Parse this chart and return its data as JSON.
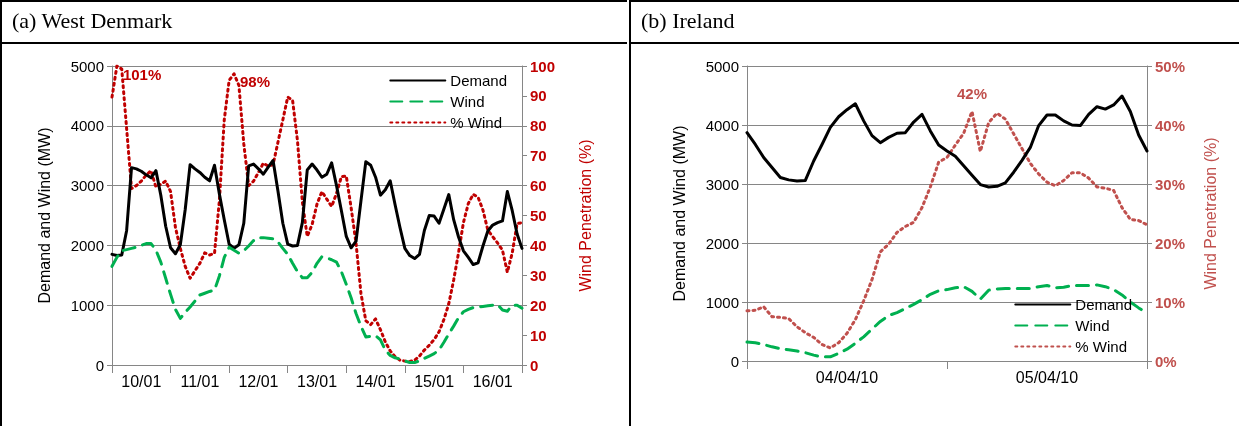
{
  "chart_data": [
    {
      "type": "line",
      "title": "(a) West Denmark",
      "ylabel": "Demand and Wind (MW)",
      "y2label": "Wind Penetration (%)",
      "categories": [
        null,
        null,
        null,
        null,
        null,
        null,
        "10/01",
        null,
        null,
        null,
        null,
        null,
        null,
        null,
        null,
        null,
        null,
        null,
        "11/01",
        null,
        null,
        null,
        null,
        null,
        null,
        null,
        null,
        null,
        null,
        null,
        "12/01",
        null,
        null,
        null,
        null,
        null,
        null,
        null,
        null,
        null,
        null,
        null,
        "13/01",
        null,
        null,
        null,
        null,
        null,
        null,
        null,
        null,
        null,
        null,
        null,
        "14/01",
        null,
        null,
        null,
        null,
        null,
        null,
        null,
        null,
        null,
        null,
        null,
        "15/01",
        null,
        null,
        null,
        null,
        null,
        null,
        null,
        null,
        null,
        null,
        null,
        "16/01",
        null,
        null,
        null,
        null,
        null,
        null
      ],
      "ylim": [
        0,
        5000
      ],
      "yticks": [
        0,
        1000,
        2000,
        3000,
        4000,
        5000
      ],
      "y2lim": [
        0,
        100
      ],
      "y2ticks": [
        0,
        10,
        20,
        30,
        40,
        50,
        60,
        70,
        80,
        90,
        100
      ],
      "grid": "y",
      "legend": "top right",
      "marker": "none",
      "annotations": [
        "101%",
        "98%"
      ],
      "series": [
        {
          "name": "Demand",
          "color": "#000000",
          "line_style": "solid",
          "values": [
            1850,
            1830,
            1840,
            2250,
            3300,
            3280,
            3240,
            3180,
            3130,
            3250,
            2840,
            2320,
            1960,
            1860,
            2010,
            2600,
            3350,
            3280,
            3220,
            3140,
            3080,
            3340,
            2860,
            2430,
            2020,
            1950,
            2010,
            2370,
            3330,
            3360,
            3280,
            3190,
            3310,
            3420,
            2910,
            2370,
            2020,
            1990,
            2000,
            2380,
            3260,
            3360,
            3260,
            3140,
            3190,
            3380,
            3000,
            2580,
            2150,
            1960,
            2070,
            2740,
            3400,
            3340,
            3140,
            2840,
            2930,
            3080,
            2680,
            2300,
            1950,
            1830,
            1780,
            1850,
            2250,
            2500,
            2490,
            2370,
            2610,
            2850,
            2430,
            2140,
            1910,
            1800,
            1680,
            1710,
            1990,
            2240,
            2340,
            2380,
            2410,
            2900,
            2580,
            2190,
            1950
          ]
        },
        {
          "name": "Wind",
          "color": "#00b050",
          "line_style": "dashed",
          "values": [
            1650,
            1800,
            1910,
            1930,
            1950,
            1970,
            2000,
            2030,
            2030,
            1920,
            1720,
            1450,
            1180,
            930,
            780,
            880,
            970,
            1070,
            1170,
            1200,
            1230,
            1250,
            1490,
            1800,
            1970,
            1920,
            1870,
            1910,
            1990,
            2080,
            2130,
            2130,
            2120,
            2110,
            2060,
            1950,
            1850,
            1700,
            1560,
            1460,
            1460,
            1550,
            1700,
            1810,
            1790,
            1760,
            1720,
            1560,
            1350,
            1120,
            860,
            650,
            470,
            480,
            490,
            420,
            250,
            160,
            120,
            100,
            70,
            40,
            40,
            70,
            110,
            150,
            190,
            250,
            380,
            520,
            650,
            790,
            890,
            930,
            960,
            970,
            980,
            990,
            1000,
            1010,
            920,
            900,
            1000,
            1000,
            950
          ]
        },
        {
          "name": "% Wind",
          "color": "#c00000",
          "line_style": "dotted",
          "axis": "y2",
          "values": [
            89.6,
            100,
            99,
            79,
            59,
            60,
            61.5,
            63.5,
            65,
            59.5,
            60.5,
            61.5,
            58,
            46,
            39,
            33,
            29,
            31.5,
            34,
            37.5,
            36.8,
            37.3,
            55,
            82,
            95.2,
            97.4,
            93.5,
            74,
            60,
            61.5,
            64.4,
            67.5,
            66.5,
            67,
            74.5,
            82,
            89.6,
            88.5,
            75,
            54.5,
            43,
            47,
            53.8,
            58,
            55.5,
            53,
            57.4,
            63,
            63.2,
            52.5,
            40.7,
            24,
            14.8,
            13.5,
            15.4,
            11.8,
            7.7,
            4.7,
            2.8,
            1.6,
            1.3,
            1.2,
            1.6,
            3,
            5,
            6.6,
            8.5,
            11.1,
            15.2,
            20.5,
            28.4,
            37.6,
            47.6,
            54,
            57.1,
            56.1,
            51.8,
            45.1,
            42.9,
            40.8,
            38.4,
            31,
            37.5,
            47.3,
            47.6
          ]
        }
      ]
    },
    {
      "type": "line",
      "title": "(b) Ireland",
      "ylabel": "Demand and Wind (MW)",
      "y2label": "Wind Penetration (%)",
      "categories": [
        null,
        null,
        null,
        null,
        null,
        null,
        null,
        null,
        null,
        null,
        null,
        null,
        "04/04/10",
        null,
        null,
        null,
        null,
        null,
        null,
        null,
        null,
        null,
        null,
        null,
        null,
        null,
        null,
        null,
        null,
        null,
        null,
        null,
        null,
        null,
        null,
        null,
        "05/04/10",
        null,
        null,
        null,
        null,
        null,
        null,
        null,
        null,
        null,
        null,
        null,
        null
      ],
      "ylim": [
        0,
        5000
      ],
      "yticks": [
        0,
        1000,
        2000,
        3000,
        4000,
        5000
      ],
      "y2lim": [
        0,
        50
      ],
      "y2ticks": [
        {
          "value": 0,
          "label": "0%"
        },
        {
          "value": 10,
          "label": "10%"
        },
        {
          "value": 20,
          "label": "20%"
        },
        {
          "value": 30,
          "label": "30%"
        },
        {
          "value": 40,
          "label": "40%"
        },
        {
          "value": 50,
          "label": "50%"
        }
      ],
      "grid": "y",
      "legend": "bottom right",
      "marker": "none",
      "annotations": [
        "42%"
      ],
      "series": [
        {
          "name": "Demand",
          "color": "#000000",
          "line_style": "solid",
          "values": [
            3870,
            3670,
            3450,
            3280,
            3110,
            3070,
            3050,
            3060,
            3390,
            3670,
            3960,
            4140,
            4260,
            4360,
            4070,
            3820,
            3700,
            3790,
            3860,
            3870,
            4050,
            4180,
            3900,
            3660,
            3560,
            3470,
            3310,
            3150,
            2990,
            2950,
            2960,
            3020,
            3200,
            3400,
            3620,
            3990,
            4170,
            4170,
            4070,
            4000,
            3990,
            4180,
            4310,
            4270,
            4340,
            4490,
            4230,
            3830,
            3560
          ]
        },
        {
          "name": "Wind",
          "color": "#00b050",
          "line_style": "dashed",
          "values": [
            320,
            310,
            280,
            240,
            210,
            190,
            170,
            140,
            100,
            70,
            70,
            130,
            200,
            300,
            410,
            540,
            670,
            770,
            820,
            890,
            960,
            1040,
            1130,
            1190,
            1210,
            1240,
            1260,
            1180,
            1050,
            1200,
            1220,
            1230,
            1230,
            1230,
            1230,
            1260,
            1280,
            1240,
            1250,
            1280,
            1280,
            1280,
            1290,
            1260,
            1210,
            1120,
            1000,
            900,
            810
          ]
        },
        {
          "name": "% Wind",
          "color": "#c0504d",
          "line_style": "dotted",
          "axis": "y2",
          "values": [
            8.5,
            8.6,
            9.2,
            7.5,
            7.4,
            7.2,
            5.8,
            4.8,
            4,
            2.8,
            2.2,
            3.1,
            4.7,
            7,
            10.2,
            13.8,
            18.5,
            19.8,
            21.8,
            22.8,
            23.5,
            26,
            29.5,
            33.7,
            34.5,
            36.6,
            38.6,
            42.3,
            35.5,
            40.4,
            42,
            41,
            38.5,
            36,
            33.5,
            31.7,
            30.3,
            29.7,
            30.6,
            31.9,
            31.9,
            31,
            29.5,
            29.3,
            28.9,
            26,
            24,
            23.8,
            23.1
          ]
        }
      ]
    }
  ]
}
